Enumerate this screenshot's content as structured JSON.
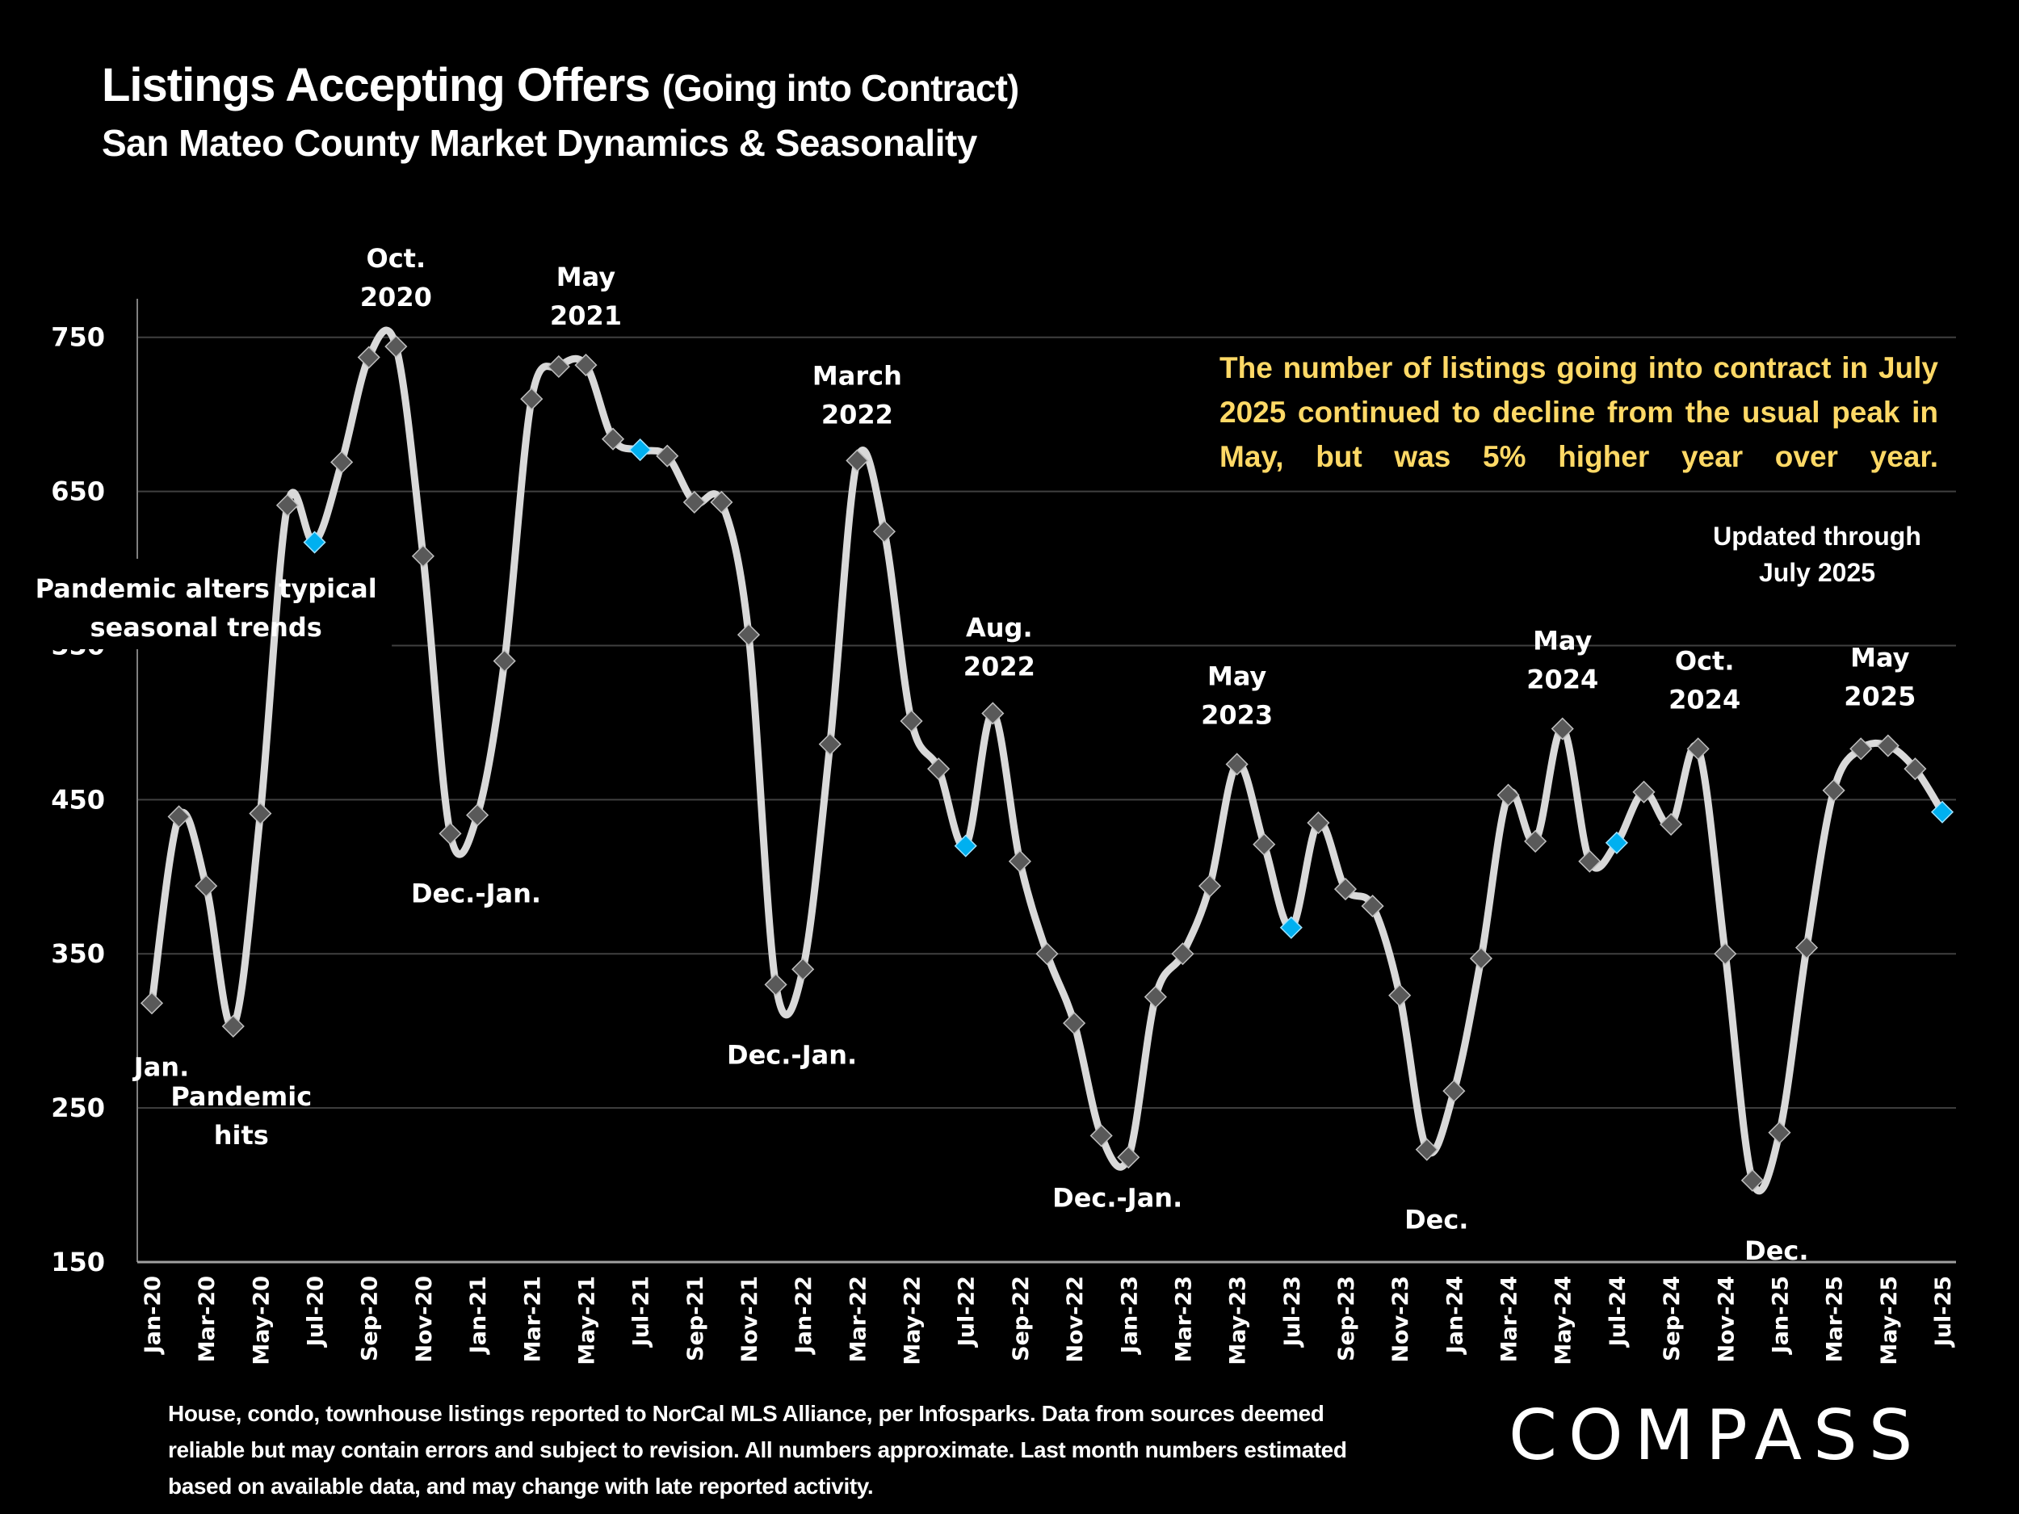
{
  "header": {
    "title_main": "Listings Accepting Offers",
    "title_paren": "(Going into Contract)",
    "subtitle": "San Mateo County Market Dynamics & Seasonality"
  },
  "callout": "The number of listings going into contract in July 2025 continued to decline from the usual peak in May, but was 5% higher year over year.",
  "updated": [
    "Updated through",
    "July 2025"
  ],
  "footnote": "House, condo, townhouse listings reported to NorCal MLS Alliance, per Infosparks. Data from sources deemed reliable but may contain errors and subject to revision. All numbers approximate. Last month numbers estimated based on available data, and may change with late reported activity.",
  "logo": "COMPASS",
  "colors": {
    "background": "#000000",
    "line": "#d9d9d9",
    "marker": "#595959",
    "highlight_marker": "#00b0f0",
    "callout_text": "#ffd966",
    "gridline": "#404040"
  },
  "chart_data": {
    "type": "line",
    "title": "Listings Accepting Offers (Going into Contract)",
    "subtitle": "San Mateo County Market Dynamics & Seasonality",
    "xlabel": "",
    "ylabel": "",
    "ylim": [
      150,
      775
    ],
    "yticks": [
      150,
      250,
      350,
      450,
      550,
      650,
      750
    ],
    "grid": true,
    "smooth": true,
    "x": [
      "Jan-20",
      "Feb-20",
      "Mar-20",
      "Apr-20",
      "May-20",
      "Jun-20",
      "Jul-20",
      "Aug-20",
      "Sep-20",
      "Oct-20",
      "Nov-20",
      "Dec-20",
      "Jan-21",
      "Feb-21",
      "Mar-21",
      "Apr-21",
      "May-21",
      "Jun-21",
      "Jul-21",
      "Aug-21",
      "Sep-21",
      "Oct-21",
      "Nov-21",
      "Dec-21",
      "Jan-22",
      "Feb-22",
      "Mar-22",
      "Apr-22",
      "May-22",
      "Jun-22",
      "Jul-22",
      "Aug-22",
      "Sep-22",
      "Oct-22",
      "Nov-22",
      "Dec-22",
      "Jan-23",
      "Feb-23",
      "Mar-23",
      "Apr-23",
      "May-23",
      "Jun-23",
      "Jul-23",
      "Aug-23",
      "Sep-23",
      "Oct-23",
      "Nov-23",
      "Dec-23",
      "Jan-24",
      "Feb-24",
      "Mar-24",
      "Apr-24",
      "May-24",
      "Jun-24",
      "Jul-24",
      "Aug-24",
      "Sep-24",
      "Oct-24",
      "Nov-24",
      "Dec-24",
      "Jan-25",
      "Feb-25",
      "Mar-25",
      "Apr-25",
      "May-25",
      "Jun-25",
      "Jul-25"
    ],
    "xtick_labels": [
      "Jan-20",
      "Mar-20",
      "May-20",
      "Jul-20",
      "Sep-20",
      "Nov-20",
      "Jan-21",
      "Mar-21",
      "May-21",
      "Jul-21",
      "Sep-21",
      "Nov-21",
      "Jan-22",
      "Mar-22",
      "May-22",
      "Jul-22",
      "Sep-22",
      "Nov-22",
      "Jan-23",
      "Mar-23",
      "May-23",
      "Jul-23",
      "Sep-23",
      "Nov-23",
      "Jan-24",
      "Mar-24",
      "May-24",
      "Jul-24",
      "Sep-24",
      "Nov-24",
      "Jan-25",
      "Mar-25",
      "May-25",
      "Jul-25"
    ],
    "series": [
      {
        "name": "Listings Accepting Offers",
        "values": [
          318,
          439,
          394,
          303,
          441,
          641,
          617,
          669,
          737,
          744,
          608,
          428,
          440,
          540,
          710,
          731,
          732,
          684,
          677,
          673,
          643,
          643,
          557,
          330,
          340,
          486,
          670,
          624,
          501,
          470,
          420,
          506,
          410,
          350,
          305,
          232,
          218,
          322,
          350,
          394,
          473,
          421,
          367,
          435,
          392,
          381,
          323,
          223,
          261,
          347,
          453,
          423,
          496,
          410,
          422,
          455,
          434,
          483,
          350,
          203,
          234,
          354,
          456,
          483,
          485,
          470,
          442
        ],
        "highlighted": [
          "Jul-20",
          "Jul-21",
          "Jul-22",
          "Jul-23",
          "Jul-24",
          "Jul-25"
        ]
      }
    ],
    "annotations": [
      {
        "text": [
          "Jan."
        ],
        "at": "Jan-20",
        "position": "below"
      },
      {
        "text": [
          "Pandemic",
          "hits"
        ],
        "at": "Apr-20",
        "position": "below"
      },
      {
        "text": [
          "Oct.",
          "2020"
        ],
        "at": "Oct-20",
        "position": "above"
      },
      {
        "text": [
          "Pandemic alters typical",
          "seasonal trends"
        ],
        "at": "Aug-20",
        "position": "middle"
      },
      {
        "text": [
          "Dec.-Jan."
        ],
        "at": "Dec-20",
        "position": "below"
      },
      {
        "text": [
          "May",
          "2021"
        ],
        "at": "May-21",
        "position": "above"
      },
      {
        "text": [
          "Dec.-Jan."
        ],
        "at": "Dec-21",
        "position": "below"
      },
      {
        "text": [
          "March",
          "2022"
        ],
        "at": "Mar-22",
        "position": "above"
      },
      {
        "text": [
          "Aug.",
          "2022"
        ],
        "at": "Aug-22",
        "position": "above"
      },
      {
        "text": [
          "Dec.-Jan."
        ],
        "at": "Dec-22",
        "position": "below"
      },
      {
        "text": [
          "May",
          "2023"
        ],
        "at": "May-23",
        "position": "above"
      },
      {
        "text": [
          "Dec."
        ],
        "at": "Dec-23",
        "position": "below"
      },
      {
        "text": [
          "May",
          "2024"
        ],
        "at": "May-24",
        "position": "above"
      },
      {
        "text": [
          "Oct.",
          "2024"
        ],
        "at": "Oct-24",
        "position": "above"
      },
      {
        "text": [
          "Dec."
        ],
        "at": "Dec-24",
        "position": "below"
      },
      {
        "text": [
          "May",
          "2025"
        ],
        "at": "May-25",
        "position": "above"
      }
    ]
  }
}
